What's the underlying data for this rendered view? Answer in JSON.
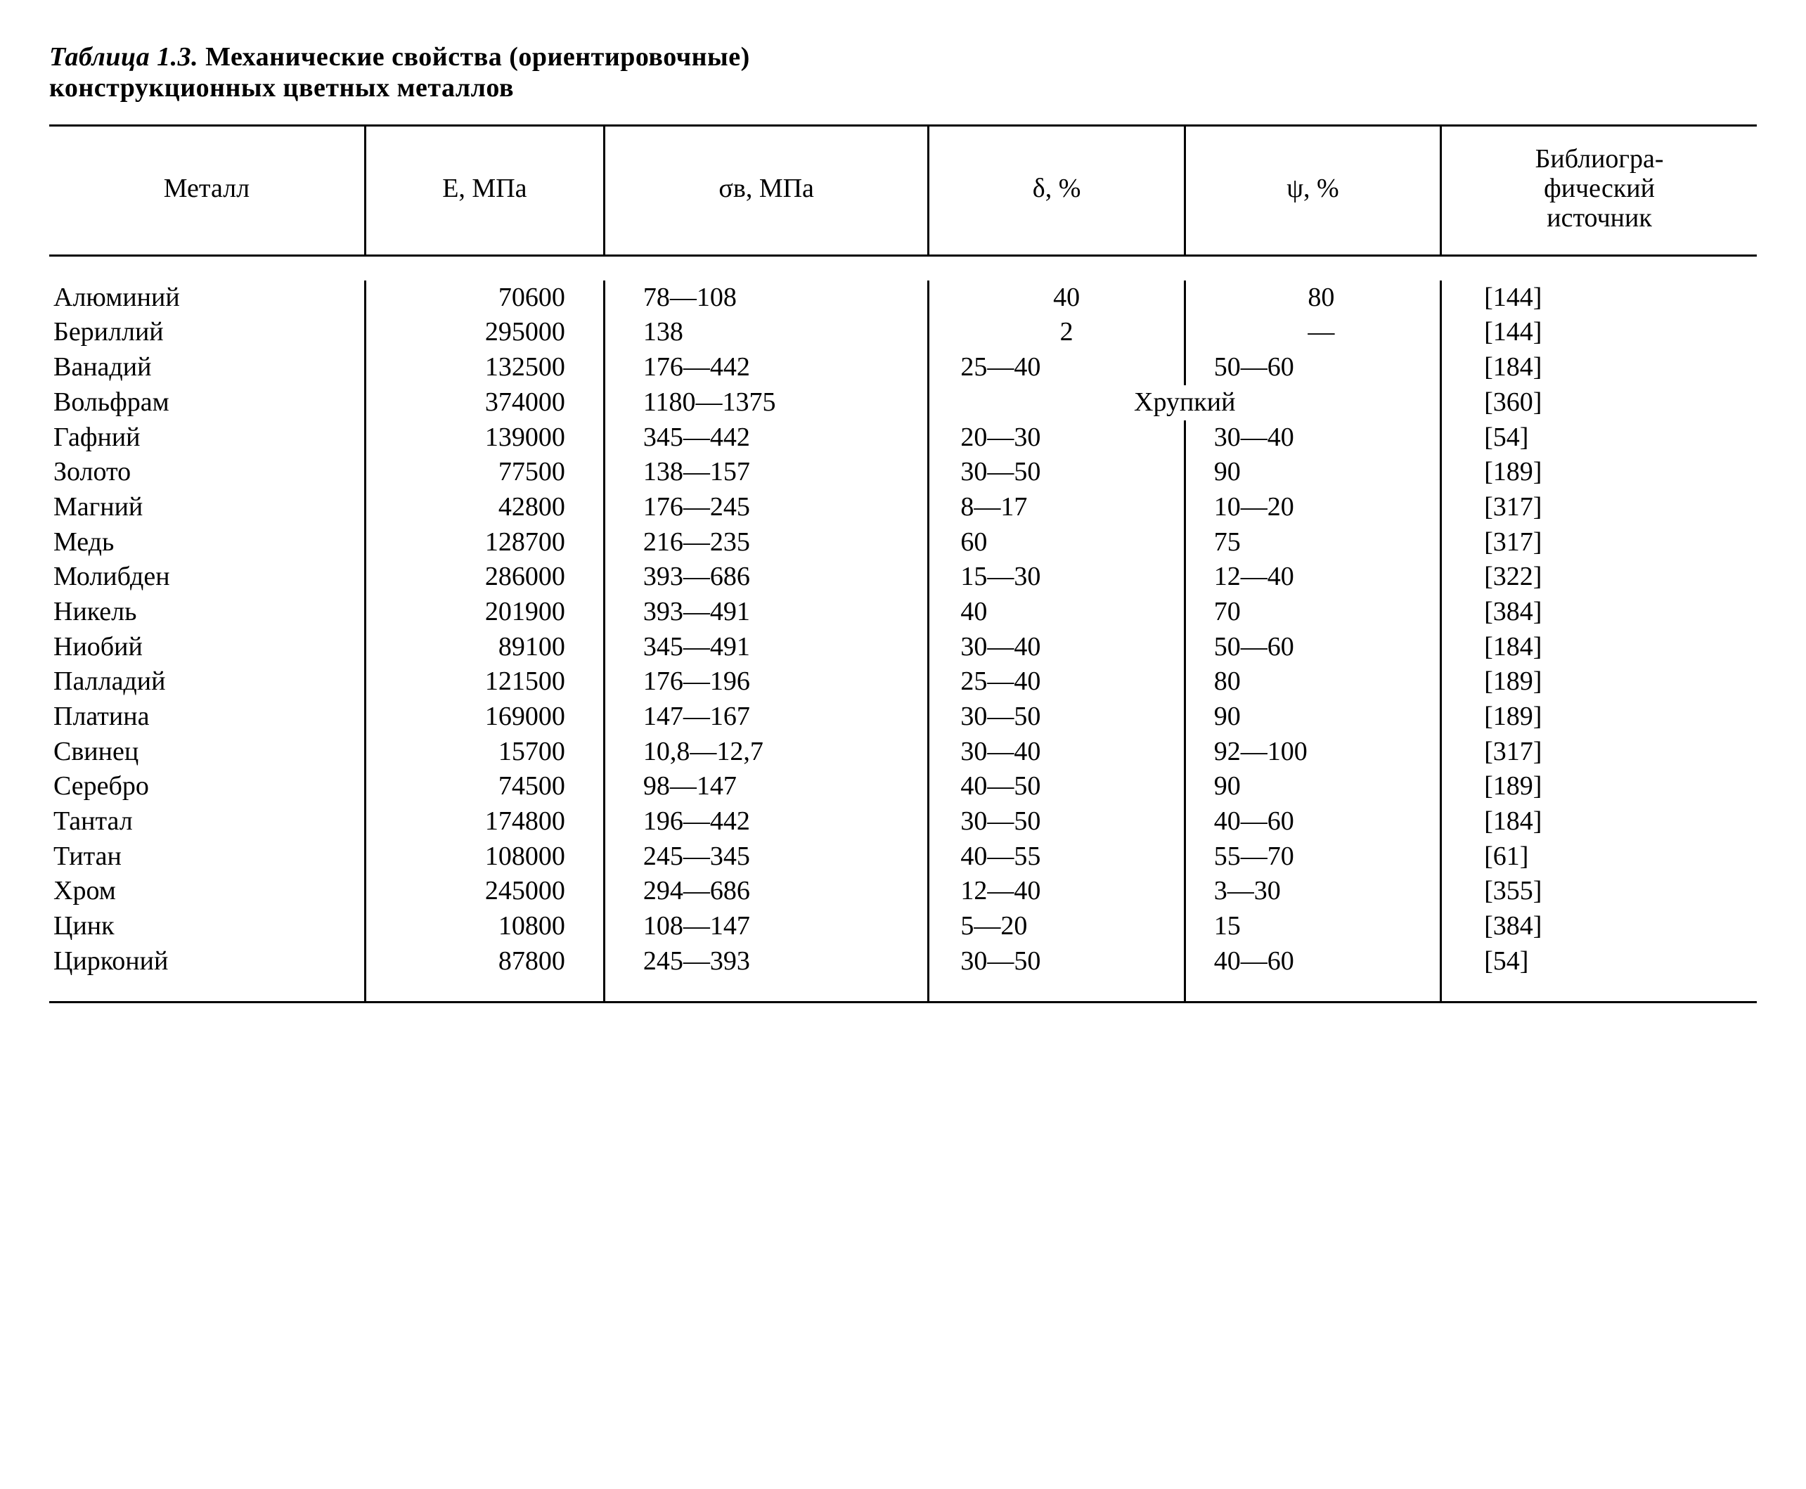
{
  "caption": {
    "label": "Таблица 1.3.",
    "title_line1": "Механические свойства (ориентировочные)",
    "title_line2": "конструкционных цветных металлов"
  },
  "columns": {
    "metal": "Металл",
    "E": "E, МПа",
    "sigma": "σв, МПа",
    "delta": "δ, %",
    "psi": "ψ, %",
    "ref": "Библиогра-\nфический\nисточник"
  },
  "brittle_label": "Хрупкий",
  "rows": [
    {
      "metal": "Алюминий",
      "E": "70600",
      "sigma": "78—108",
      "delta": "40",
      "psi": "80",
      "ref": "[144]",
      "delta_c": true,
      "psi_c": true
    },
    {
      "metal": "Бериллий",
      "E": "295000",
      "sigma": "138",
      "delta": "2",
      "psi": "—",
      "ref": "[144]",
      "delta_c": true,
      "psi_c": true
    },
    {
      "metal": "Ванадий",
      "E": "132500",
      "sigma": "176—442",
      "delta": "25—40",
      "psi": "50—60",
      "ref": "[184]"
    },
    {
      "metal": "Вольфрам",
      "E": "374000",
      "sigma": "1180—1375",
      "brittle": true,
      "ref": "[360]"
    },
    {
      "metal": "Гафний",
      "E": "139000",
      "sigma": "345—442",
      "delta": "20—30",
      "psi": "30—40",
      "ref": "[54]"
    },
    {
      "metal": "Золото",
      "E": "77500",
      "sigma": "138—157",
      "delta": "30—50",
      "psi": "90",
      "ref": "[189]"
    },
    {
      "metal": "Магний",
      "E": "42800",
      "sigma": "176—245",
      "delta": "8—17",
      "psi": "10—20",
      "ref": "[317]"
    },
    {
      "metal": "Медь",
      "E": "128700",
      "sigma": "216—235",
      "delta": "60",
      "psi": "75",
      "ref": "[317]"
    },
    {
      "metal": "Молибден",
      "E": "286000",
      "sigma": "393—686",
      "delta": "15—30",
      "psi": "12—40",
      "ref": "[322]"
    },
    {
      "metal": "Никель",
      "E": "201900",
      "sigma": "393—491",
      "delta": "40",
      "psi": "70",
      "ref": "[384]"
    },
    {
      "metal": "Ниобий",
      "E": "89100",
      "sigma": "345—491",
      "delta": "30—40",
      "psi": "50—60",
      "ref": "[184]"
    },
    {
      "metal": "Палладий",
      "E": "121500",
      "sigma": "176—196",
      "delta": "25—40",
      "psi": "80",
      "ref": "[189]"
    },
    {
      "metal": "Платина",
      "E": "169000",
      "sigma": "147—167",
      "delta": "30—50",
      "psi": "90",
      "ref": "[189]"
    },
    {
      "metal": "Свинец",
      "E": "15700",
      "sigma": "10,8—12,7",
      "delta": "30—40",
      "psi": "92—100",
      "ref": "[317]"
    },
    {
      "metal": "Серебро",
      "E": "74500",
      "sigma": "98—147",
      "delta": "40—50",
      "psi": "90",
      "ref": "[189]"
    },
    {
      "metal": "Тантал",
      "E": "174800",
      "sigma": "196—442",
      "delta": "30—50",
      "psi": "40—60",
      "ref": "[184]"
    },
    {
      "metal": "Титан",
      "E": "108000",
      "sigma": "245—345",
      "delta": "40—55",
      "psi": "55—70",
      "ref": "[61]"
    },
    {
      "metal": "Хром",
      "E": "245000",
      "sigma": "294—686",
      "delta": "12—40",
      "psi": "3—30",
      "ref": "[355]"
    },
    {
      "metal": "Цинк",
      "E": "10800",
      "sigma": "108—147",
      "delta": "5—20",
      "psi": "15",
      "ref": "[384]"
    },
    {
      "metal": "Цирконий",
      "E": "87800",
      "sigma": "245—393",
      "delta": "30—50",
      "psi": "40—60",
      "ref": "[54]"
    }
  ]
}
